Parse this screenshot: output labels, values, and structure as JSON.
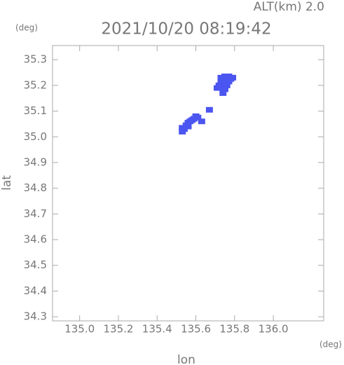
{
  "chart_data": {
    "type": "scatter",
    "title": "2021/10/20 08:19:42",
    "subtitle": "ALT(km) 2.0",
    "x_label": "lon",
    "y_label": "lat",
    "x_unit": "(deg)",
    "y_unit": "(deg)",
    "series": [
      {
        "color": "#4b55f0",
        "x": [
          135.73,
          135.75,
          135.77,
          135.79,
          135.74,
          135.76,
          135.78,
          135.73,
          135.75,
          135.77,
          135.72,
          135.74,
          135.76,
          135.71,
          135.73,
          135.75,
          135.74,
          135.6,
          135.61,
          135.58,
          135.59,
          135.56,
          135.57,
          135.55,
          135.56,
          135.53,
          135.54,
          135.53,
          135.63,
          135.67
        ],
        "values": [
          35.23,
          35.235,
          35.235,
          35.23,
          35.22,
          35.22,
          35.225,
          35.21,
          35.21,
          35.215,
          35.2,
          35.2,
          35.2,
          35.19,
          35.19,
          35.185,
          35.17,
          35.08,
          35.075,
          35.065,
          35.07,
          35.055,
          35.06,
          35.045,
          35.04,
          35.035,
          35.03,
          35.02,
          35.06,
          35.105
        ]
      }
    ],
    "xlim": [
      134.86,
      136.26
    ],
    "ylim": [
      34.284,
      35.355
    ],
    "xticks": [
      {
        "value": 135.0,
        "label": "135.0"
      },
      135.2,
      135.4,
      135.6,
      135.8,
      {
        "value": 136.0,
        "label": "136.0"
      }
    ],
    "yticks": [
      35.3,
      35.2,
      35.1,
      {
        "value": 35.0,
        "label": "35.0"
      },
      34.9,
      34.8,
      34.7,
      34.6,
      34.5,
      34.4,
      34.3
    ]
  }
}
